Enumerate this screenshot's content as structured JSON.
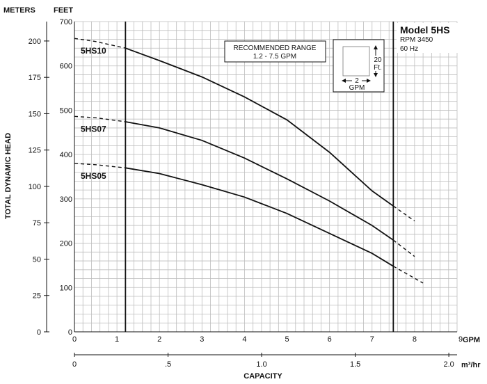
{
  "chart_data": {
    "type": "line",
    "title": "Model 5HS",
    "subtitle_lines": [
      "RPM 3450",
      "60 Hz"
    ],
    "meters_label": "METERS",
    "feet_label": "FEET",
    "ylabel": "TOTAL DYNAMIC HEAD",
    "xlabel": "CAPACITY",
    "gpm_unit": "GPM",
    "m3hr_unit": "m³/hr",
    "xlim": [
      0,
      9
    ],
    "ylim_feet": [
      0,
      700
    ],
    "ylim_meters": [
      0,
      213.36
    ],
    "feet_ticks": [
      "0",
      "100",
      "200",
      "300",
      "400",
      "500",
      "600",
      "700"
    ],
    "meters_ticks": [
      "0",
      "25",
      "50",
      "75",
      "100",
      "125",
      "150",
      "175",
      "200"
    ],
    "gpm_ticks": [
      "0",
      "1",
      "2",
      "3",
      "4",
      "5",
      "6",
      "7",
      "8",
      "9"
    ],
    "m3hr_ticks": [
      "0",
      ".5",
      "1.0",
      "1.5",
      "2.0"
    ],
    "recommended_range": {
      "line1": "RECOMMENDED RANGE",
      "line2": "1.2 - 7.5 GPM",
      "min_gpm": 1.2,
      "max_gpm": 7.5
    },
    "scale_box": {
      "height_value": "20",
      "height_unit": "Ft.",
      "width_value": "2",
      "width_unit": "GPM"
    },
    "series": [
      {
        "name": "5HS10",
        "points": [
          [
            0,
            662
          ],
          [
            0.5,
            655
          ],
          [
            1.2,
            640
          ],
          [
            2,
            612
          ],
          [
            3,
            575
          ],
          [
            4,
            530
          ],
          [
            5,
            478
          ],
          [
            6,
            405
          ],
          [
            7,
            318
          ],
          [
            7.5,
            284
          ],
          [
            8,
            250
          ]
        ]
      },
      {
        "name": "5HS07",
        "points": [
          [
            0,
            486
          ],
          [
            0.5,
            483
          ],
          [
            1.2,
            474
          ],
          [
            2,
            460
          ],
          [
            3,
            432
          ],
          [
            4,
            392
          ],
          [
            5,
            345
          ],
          [
            6,
            295
          ],
          [
            7,
            240
          ],
          [
            7.5,
            207
          ],
          [
            8,
            170
          ]
        ]
      },
      {
        "name": "5HS05",
        "points": [
          [
            0,
            380
          ],
          [
            0.5,
            377
          ],
          [
            1.2,
            370
          ],
          [
            2,
            357
          ],
          [
            3,
            332
          ],
          [
            4,
            304
          ],
          [
            5,
            267
          ],
          [
            6,
            222
          ],
          [
            7,
            177
          ],
          [
            7.5,
            148
          ],
          [
            8.2,
            110
          ]
        ]
      }
    ],
    "grid": true
  }
}
